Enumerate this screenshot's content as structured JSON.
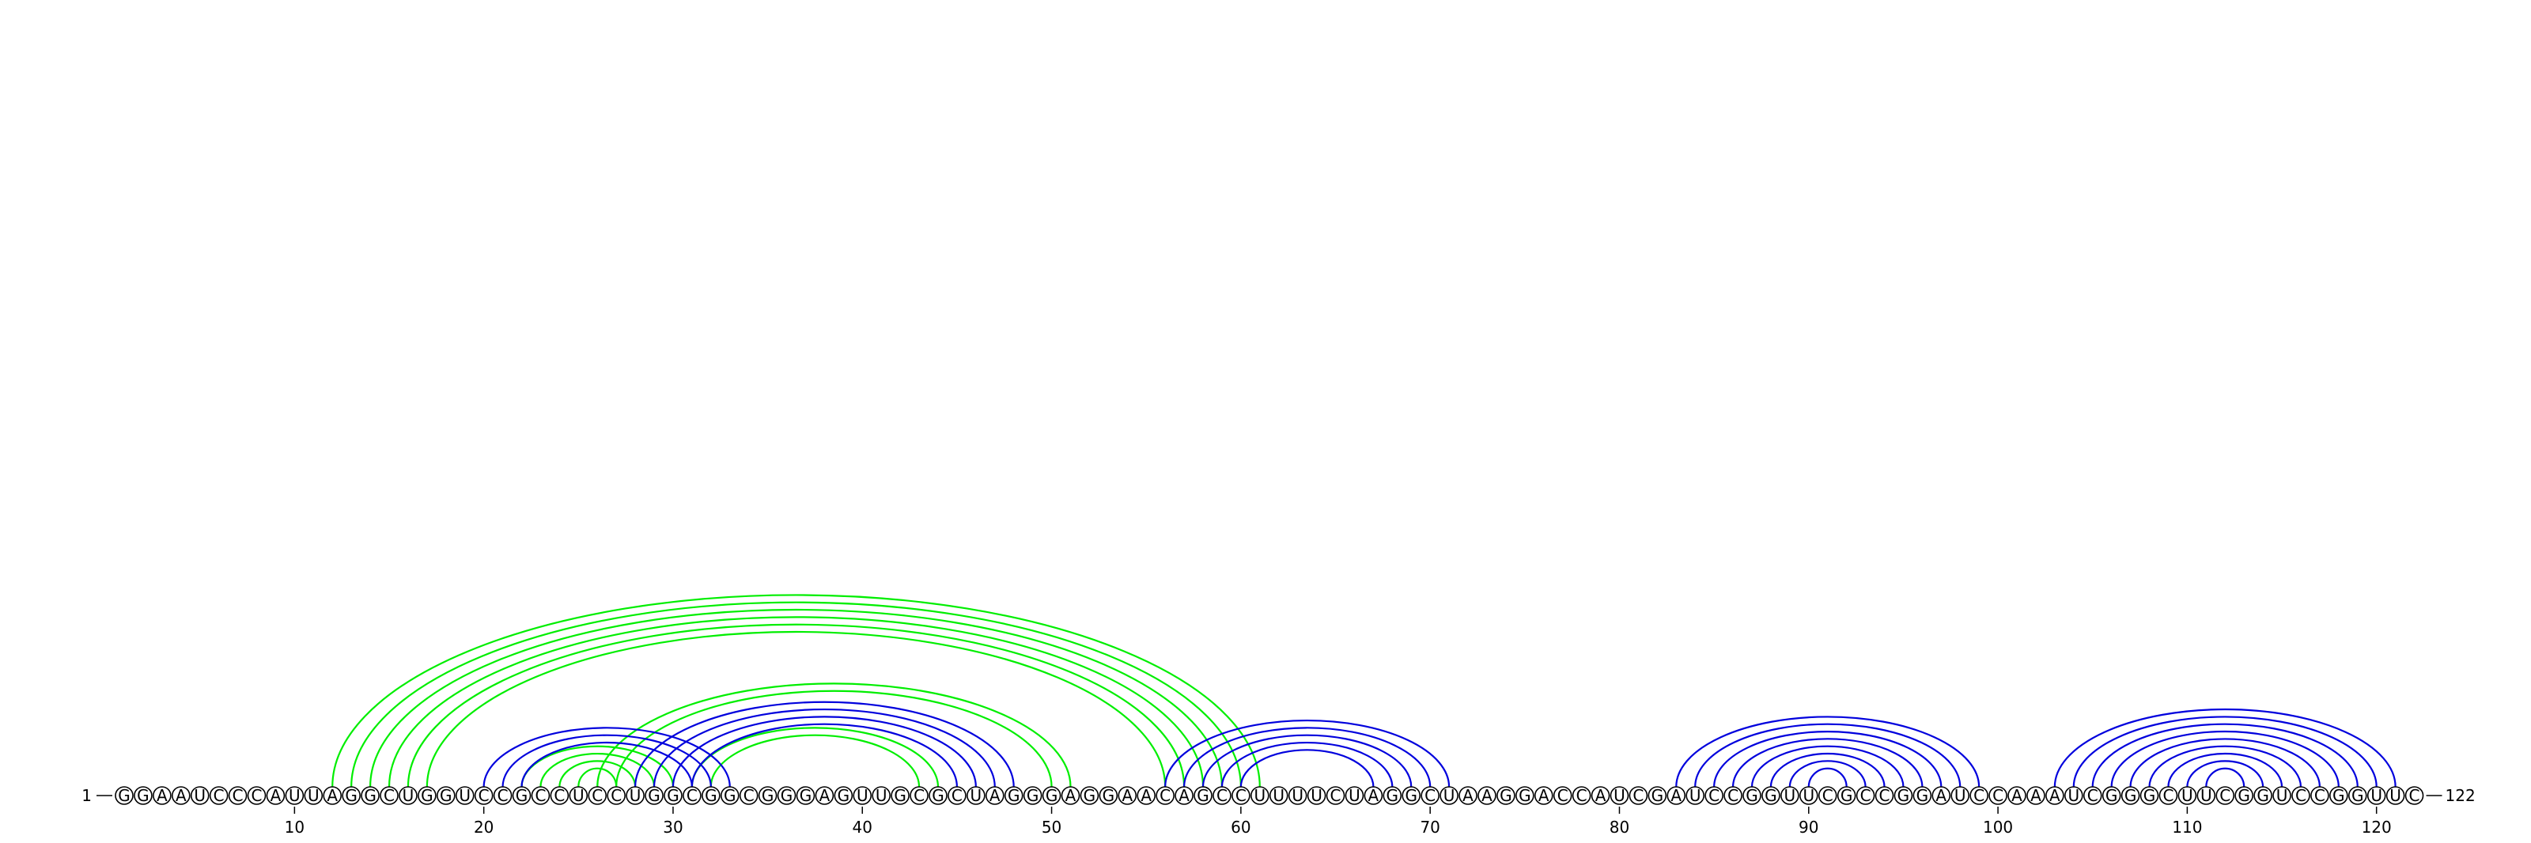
{
  "sequence": "GGAAUCCCAUUAGGCUGGUCCGCCUCCUGGCGGCGGGAGUUGCGCUAGGGAGGAACAGCCUUUUCUAGGCUAAGGACCAUCGAUCCGGUUCGCCGGAUCCAAAUCGGGCUUCGGUCCGGUUC",
  "start_label": "1",
  "end_label": "122",
  "ticks": [
    {
      "pos": 10,
      "label": "10"
    },
    {
      "pos": 20,
      "label": "20"
    },
    {
      "pos": 30,
      "label": "30"
    },
    {
      "pos": 40,
      "label": "40"
    },
    {
      "pos": 50,
      "label": "50"
    },
    {
      "pos": 60,
      "label": "60"
    },
    {
      "pos": 70,
      "label": "70"
    },
    {
      "pos": 80,
      "label": "80"
    },
    {
      "pos": 90,
      "label": "90"
    },
    {
      "pos": 100,
      "label": "100"
    },
    {
      "pos": 110,
      "label": "110"
    },
    {
      "pos": 120,
      "label": "120"
    }
  ],
  "colors": {
    "green_pairs": "#00ee00",
    "blue_pairs": "#0000dd",
    "line": "#000000"
  },
  "pairs": [
    {
      "i": 12,
      "j": 61,
      "color": "green"
    },
    {
      "i": 13,
      "j": 60,
      "color": "green"
    },
    {
      "i": 14,
      "j": 59,
      "color": "green"
    },
    {
      "i": 15,
      "j": 58,
      "color": "green"
    },
    {
      "i": 16,
      "j": 57,
      "color": "green"
    },
    {
      "i": 17,
      "j": 56,
      "color": "green"
    },
    {
      "i": 26,
      "j": 51,
      "color": "green"
    },
    {
      "i": 27,
      "j": 50,
      "color": "green"
    },
    {
      "i": 22,
      "j": 30,
      "color": "green"
    },
    {
      "i": 23,
      "j": 29,
      "color": "green"
    },
    {
      "i": 24,
      "j": 28,
      "color": "green"
    },
    {
      "i": 25,
      "j": 27,
      "color": "green"
    },
    {
      "i": 31,
      "j": 44,
      "color": "green"
    },
    {
      "i": 32,
      "j": 43,
      "color": "green"
    },
    {
      "i": 20,
      "j": 33,
      "color": "blue"
    },
    {
      "i": 21,
      "j": 32,
      "color": "blue"
    },
    {
      "i": 22,
      "j": 31,
      "color": "blue"
    },
    {
      "i": 28,
      "j": 48,
      "color": "blue"
    },
    {
      "i": 29,
      "j": 47,
      "color": "blue"
    },
    {
      "i": 30,
      "j": 46,
      "color": "blue"
    },
    {
      "i": 31,
      "j": 45,
      "color": "blue"
    },
    {
      "i": 56,
      "j": 71,
      "color": "blue"
    },
    {
      "i": 57,
      "j": 70,
      "color": "blue"
    },
    {
      "i": 58,
      "j": 69,
      "color": "blue"
    },
    {
      "i": 59,
      "j": 68,
      "color": "blue"
    },
    {
      "i": 60,
      "j": 67,
      "color": "blue"
    },
    {
      "i": 83,
      "j": 99,
      "color": "blue"
    },
    {
      "i": 84,
      "j": 98,
      "color": "blue"
    },
    {
      "i": 85,
      "j": 97,
      "color": "blue"
    },
    {
      "i": 86,
      "j": 96,
      "color": "blue"
    },
    {
      "i": 87,
      "j": 95,
      "color": "blue"
    },
    {
      "i": 88,
      "j": 94,
      "color": "blue"
    },
    {
      "i": 89,
      "j": 93,
      "color": "blue"
    },
    {
      "i": 90,
      "j": 92,
      "color": "blue"
    },
    {
      "i": 103,
      "j": 121,
      "color": "blue"
    },
    {
      "i": 104,
      "j": 120,
      "color": "blue"
    },
    {
      "i": 105,
      "j": 119,
      "color": "blue"
    },
    {
      "i": 106,
      "j": 118,
      "color": "blue"
    },
    {
      "i": 107,
      "j": 117,
      "color": "blue"
    },
    {
      "i": 108,
      "j": 116,
      "color": "blue"
    },
    {
      "i": 109,
      "j": 115,
      "color": "blue"
    },
    {
      "i": 110,
      "j": 114,
      "color": "blue"
    },
    {
      "i": 111,
      "j": 113,
      "color": "blue"
    }
  ]
}
